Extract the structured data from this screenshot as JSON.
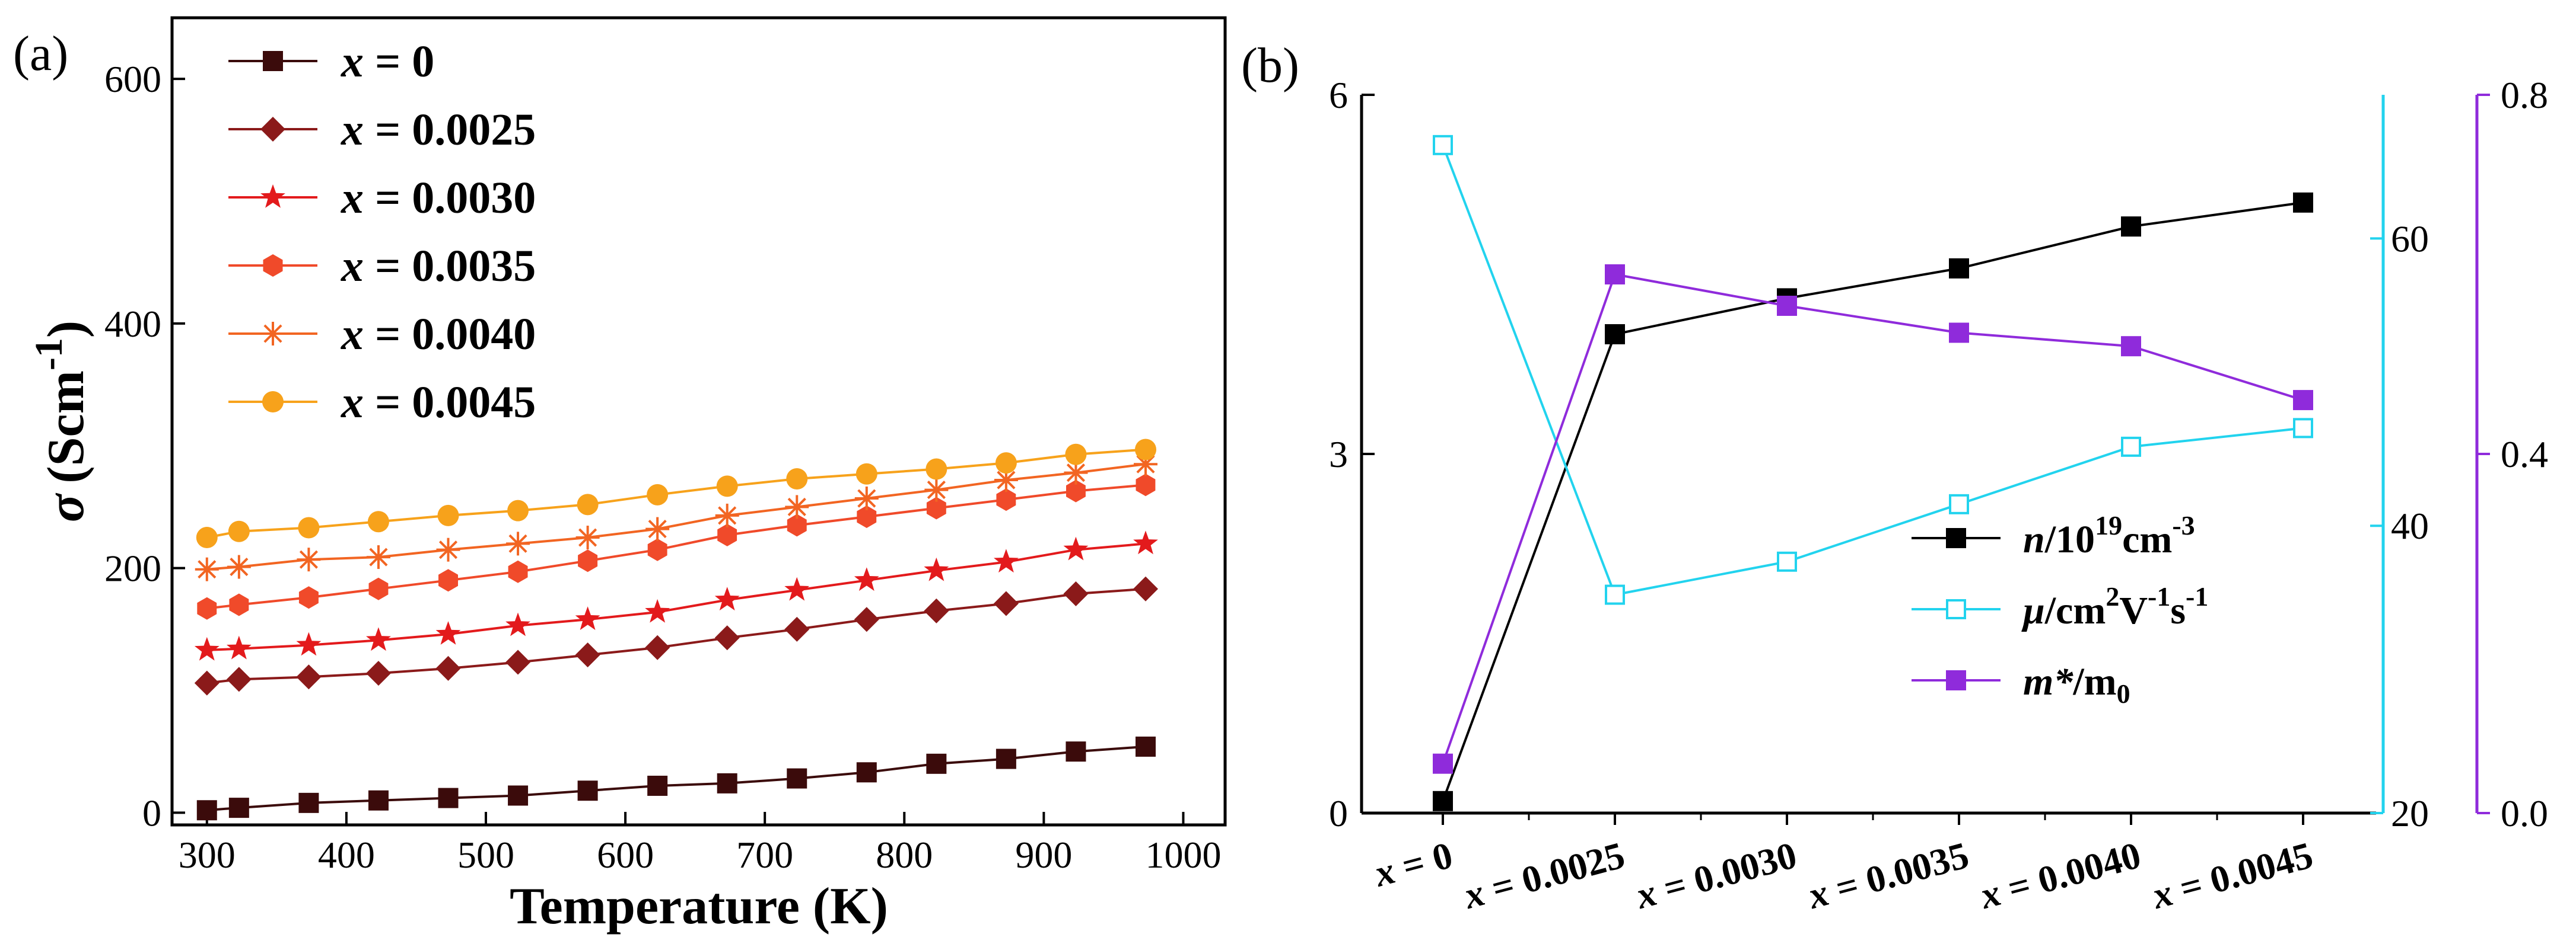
{
  "chart_data": [
    {
      "type": "line",
      "panel_label": "(a)",
      "xlabel": "Temperature (K)",
      "ylabel_symbol": "σ",
      "ylabel_unit": "(Scm",
      "ylabel_exp": "-1",
      "ylabel_close": ")",
      "xlim": [
        275,
        1030
      ],
      "ylim": [
        -10,
        650
      ],
      "xticks": [
        300,
        400,
        500,
        600,
        700,
        800,
        900,
        1000
      ],
      "yticks": [
        0,
        200,
        400,
        600
      ],
      "x": [
        300,
        323,
        373,
        423,
        473,
        523,
        573,
        623,
        673,
        723,
        773,
        823,
        873,
        923,
        973
      ],
      "series": [
        {
          "name": "x = 0",
          "var": "x",
          "value": " = 0",
          "color": "#3b0b0b",
          "marker": "square",
          "values": [
            2,
            4,
            8,
            10,
            12,
            14,
            18,
            22,
            24,
            28,
            33,
            40,
            44,
            50,
            54
          ]
        },
        {
          "name": "x = 0.0025",
          "var": "x",
          "value": " = 0.0025",
          "color": "#8b1a1a",
          "marker": "diamond",
          "values": [
            106,
            109,
            111,
            114,
            118,
            123,
            129,
            135,
            143,
            150,
            158,
            165,
            171,
            179,
            183
          ]
        },
        {
          "name": "x = 0.0030",
          "var": "x",
          "value": " = 0.0030",
          "color": "#e31a1c",
          "marker": "star",
          "values": [
            133,
            134,
            137,
            141,
            146,
            153,
            158,
            164,
            174,
            182,
            190,
            198,
            205,
            215,
            220
          ]
        },
        {
          "name": "x = 0.0035",
          "var": "x",
          "value": " = 0.0035",
          "color": "#f04a2a",
          "marker": "hexagon",
          "values": [
            167,
            170,
            176,
            183,
            190,
            197,
            206,
            215,
            227,
            235,
            242,
            249,
            256,
            263,
            268
          ]
        },
        {
          "name": "x = 0.0040",
          "var": "x",
          "value": " = 0.0040",
          "color": "#f26522",
          "marker": "asterisk",
          "values": [
            199,
            201,
            207,
            209,
            215,
            220,
            225,
            232,
            243,
            250,
            257,
            264,
            272,
            278,
            285
          ]
        },
        {
          "name": "x = 0.0045",
          "var": "x",
          "value": " = 0.0045",
          "color": "#f7a21b",
          "marker": "circle",
          "values": [
            225,
            230,
            233,
            238,
            243,
            247,
            252,
            260,
            267,
            273,
            277,
            281,
            286,
            293,
            297
          ]
        }
      ]
    },
    {
      "type": "line",
      "panel_label": "(b)",
      "categories_var": "x",
      "categories": [
        " = 0",
        " = 0.0025",
        " = 0.0030",
        " = 0.0035",
        " = 0.0040",
        " = 0.0045"
      ],
      "left_axis": {
        "ylim": [
          0,
          6
        ],
        "ticks": [
          "0",
          "3",
          "6"
        ],
        "color": "#000000"
      },
      "mid_axis": {
        "ylim": [
          20,
          70
        ],
        "ticks": [
          "20",
          "40",
          "60"
        ],
        "color": "#22d3ee"
      },
      "right_axis": {
        "ylim": [
          0,
          0.8
        ],
        "ticks": [
          "0.0",
          "0.4",
          "0.8"
        ],
        "color": "#8f2bdb"
      },
      "series": [
        {
          "name": "n/10^19 cm^-3",
          "axis": "left",
          "color": "#000000",
          "marker": "square-filled",
          "values": [
            0.1,
            4.0,
            4.3,
            4.55,
            4.9,
            5.1
          ]
        },
        {
          "name": "μ/cm^2 V^-1 s^-1",
          "axis": "mid",
          "color": "#22d3ee",
          "marker": "square-open",
          "values": [
            66.5,
            35.2,
            37.5,
            41.5,
            45.5,
            46.8
          ]
        },
        {
          "name": "m*/m0",
          "axis": "right",
          "color": "#8f2bdb",
          "marker": "square-filled",
          "values": [
            0.055,
            0.6,
            0.565,
            0.535,
            0.52,
            0.46
          ]
        }
      ],
      "legend": [
        {
          "main": "n",
          "rest": "/10",
          "sup1": "19",
          "mid": "cm",
          "sup2": "-3"
        },
        {
          "main": "μ",
          "rest": "/cm",
          "sup1": "2",
          "mid": "V",
          "sup2": "-1",
          "mid2": "s",
          "sup3": "-1"
        },
        {
          "main": "m*",
          "rest": "/m",
          "sub": "0"
        }
      ]
    }
  ]
}
